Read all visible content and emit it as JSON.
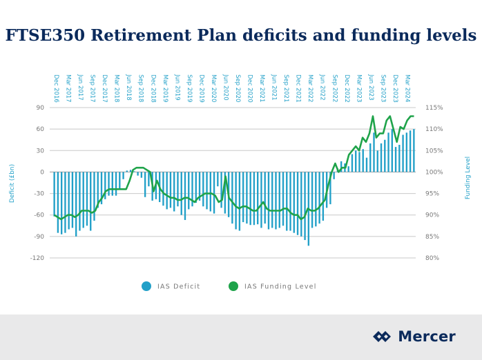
{
  "title": "FTSE350 Retirement Plan deficits and funding levels",
  "brand": {
    "name": "Mercer",
    "color": "#0b2a5b"
  },
  "chart_data": {
    "type": "bar+line",
    "x_labels": [
      "Dec 2016",
      "Mar 2017",
      "Jun 2017",
      "Sep 2017",
      "Dec 2017",
      "Mar 2018",
      "Jun 2018",
      "Sep 2018",
      "Dec 2018",
      "Mar 2019",
      "Jun 2019",
      "Sep 2019",
      "Dec 2019",
      "Mar 2020",
      "Jun 2020",
      "Sep 2020",
      "Dec 2020",
      "Mar 2021",
      "Jun 2021",
      "Sep 2021",
      "Dec 2021",
      "Mar 2022",
      "Jun 2022",
      "Sep 2022",
      "Dec 2022",
      "Mar 2023",
      "Jun 2023",
      "Sep 2023",
      "Dec 2023",
      "Mar 2024"
    ],
    "ylabel_left": "Deficit (£bn)",
    "ylabel_right": "Funding Level",
    "ylim_left": [
      -120,
      90
    ],
    "left_ticks": [
      "90",
      "60",
      "30",
      "0",
      "-30",
      "-60",
      "-90",
      "-120"
    ],
    "ylim_right": [
      80,
      115
    ],
    "right_ticks": [
      "115%",
      "110%",
      "105%",
      "100%",
      "95%",
      "90%",
      "85%",
      "80%"
    ],
    "grid": true,
    "legend_position": "bottom",
    "series": [
      {
        "name": "IAS Deficit",
        "kind": "bar",
        "color": "#22a0c8",
        "values": [
          -62,
          -85,
          -87,
          -85,
          -80,
          -78,
          -90,
          -82,
          -78,
          -75,
          -82,
          -68,
          -50,
          -45,
          -38,
          -33,
          -33,
          -33,
          -25,
          -10,
          2,
          3,
          1,
          -5,
          -8,
          -35,
          -20,
          -40,
          -38,
          -42,
          -47,
          -52,
          -50,
          -55,
          -48,
          -60,
          -67,
          -52,
          -48,
          -43,
          -40,
          -48,
          -52,
          -55,
          -58,
          -20,
          -50,
          -58,
          -63,
          -72,
          -80,
          -82,
          -70,
          -72,
          -74,
          -74,
          -73,
          -78,
          -72,
          -80,
          -78,
          -80,
          -78,
          -75,
          -82,
          -82,
          -85,
          -88,
          -90,
          -95,
          -103,
          -78,
          -76,
          -72,
          -68,
          -50,
          -45,
          -10,
          5,
          15,
          12,
          8,
          25,
          30,
          28,
          32,
          20,
          40,
          55,
          30,
          40,
          45,
          55,
          60,
          35,
          38,
          52,
          55,
          58,
          60
        ]
      },
      {
        "name": "IAS Funding Level",
        "kind": "line",
        "color": "#1fa34a",
        "values": [
          90,
          89.5,
          89,
          89.5,
          90,
          90,
          89.5,
          90,
          91,
          91,
          91,
          90.5,
          91,
          93,
          94,
          95.5,
          96,
          96,
          96,
          96,
          96,
          96,
          98,
          100.5,
          101,
          101,
          101,
          100.5,
          100,
          95.5,
          98,
          96,
          95,
          94.5,
          94,
          94,
          93.5,
          93.5,
          94,
          94,
          93.5,
          93,
          94,
          94.5,
          95,
          95,
          95,
          94.5,
          93,
          93.5,
          99,
          94,
          93,
          92,
          91.5,
          92,
          92,
          91.5,
          91,
          91,
          92,
          93,
          91.5,
          91,
          91,
          91,
          91,
          91.5,
          91.5,
          90.5,
          90,
          90,
          89,
          89.5,
          91.5,
          91,
          91,
          91.5,
          92.5,
          93.5,
          97,
          100,
          102,
          100,
          101,
          101,
          104,
          105,
          106,
          105,
          108,
          107,
          109,
          113,
          108,
          109,
          109,
          112,
          113,
          110,
          107,
          110.5,
          110,
          112,
          113,
          113
        ]
      }
    ]
  }
}
